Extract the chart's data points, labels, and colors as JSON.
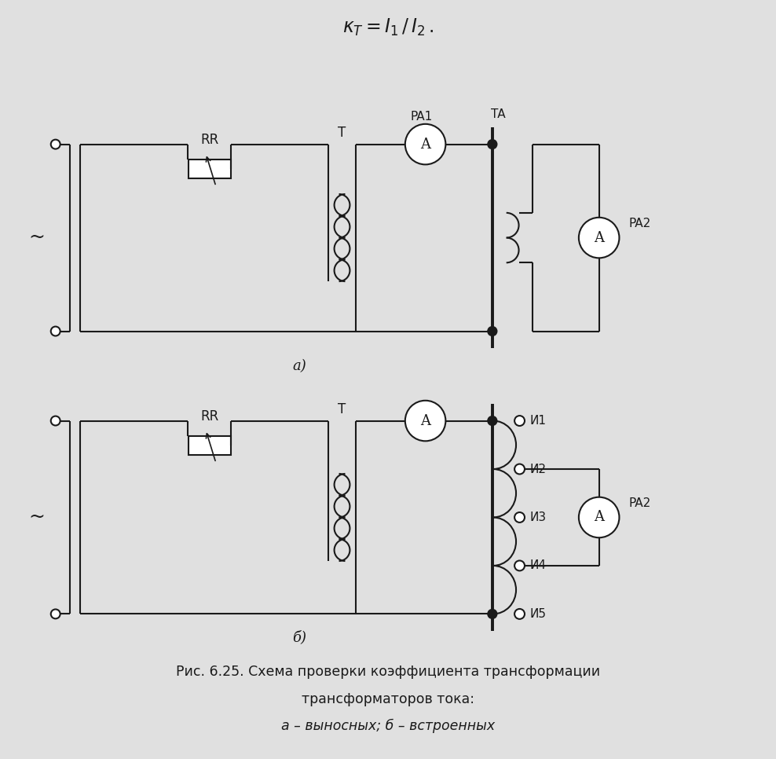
{
  "bg_color": "#e0e0e0",
  "line_color": "#1a1a1a",
  "label_a": "а)",
  "label_b": "б)",
  "caption_line1": "Рис. 6.25. Схема проверки коэффициента трансформации",
  "caption_line2": "трансформаторов тока:",
  "caption_line3": "а – выносных; б – встроенных"
}
